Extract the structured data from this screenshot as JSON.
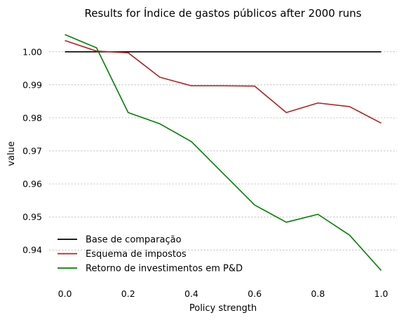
{
  "chart_data": {
    "type": "line",
    "title": "Results for Índice de gastos públicos after 2000 runs",
    "xlabel": "Policy strength",
    "ylabel": "value",
    "x": [
      0.0,
      0.1,
      0.2,
      0.3,
      0.4,
      0.5,
      0.6,
      0.7,
      0.8,
      0.9,
      1.0
    ],
    "xlim": [
      -0.05,
      1.05
    ],
    "ylim": [
      0.9307,
      1.0076
    ],
    "x_ticks": [
      "0.0",
      "0.2",
      "0.4",
      "0.6",
      "0.8",
      "1.0"
    ],
    "x_tick_values": [
      0.0,
      0.2,
      0.4,
      0.6,
      0.8,
      1.0
    ],
    "y_ticks": [
      "0.94",
      "0.95",
      "0.96",
      "0.97",
      "0.98",
      "0.99",
      "1.00"
    ],
    "y_tick_values": [
      0.94,
      0.95,
      0.96,
      0.97,
      0.98,
      0.99,
      1.0
    ],
    "grid": "horizontal-dashed",
    "legend_position": "lower-left",
    "series": [
      {
        "name": "Base de comparação",
        "color": "#000000",
        "values": [
          1.0,
          1.0,
          1.0,
          1.0,
          1.0,
          1.0,
          1.0,
          1.0,
          1.0,
          1.0,
          1.0
        ]
      },
      {
        "name": "Esquema de impostos",
        "color": "#b22222",
        "values": [
          1.0034,
          1.0002,
          0.9997,
          0.9923,
          0.9897,
          0.9897,
          0.9896,
          0.9816,
          0.9845,
          0.9834,
          0.9784
        ]
      },
      {
        "name": "Retorno de investimentos em P&D",
        "color": "#008000",
        "values": [
          1.0052,
          1.0012,
          0.9816,
          0.9782,
          0.9728,
          0.9632,
          0.9536,
          0.9484,
          0.9508,
          0.9445,
          0.9338
        ]
      }
    ]
  }
}
